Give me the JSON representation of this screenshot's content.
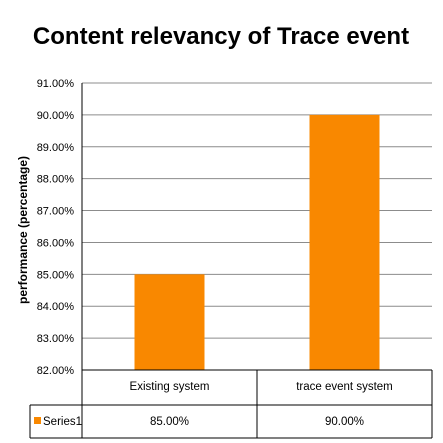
{
  "chart_data": {
    "type": "bar",
    "title": "Content relevancy of Trace event",
    "ylabel": "performance (percentage)",
    "categories": [
      "Existing system",
      "trace event system"
    ],
    "series": [
      {
        "name": "Series1",
        "values": [
          85.0,
          90.0
        ],
        "labels": [
          "85.00%",
          "90.00%"
        ]
      }
    ],
    "ylim": [
      82,
      91
    ],
    "yticks": [
      "82.00%",
      "83.00%",
      "84.00%",
      "85.00%",
      "86.00%",
      "87.00%",
      "88.00%",
      "89.00%",
      "90.00%",
      "91.00%"
    ],
    "grid": true,
    "legend": "data-table",
    "colors": {
      "bar": "#F98800",
      "grid": "#8C8C8C",
      "axis": "#000000"
    }
  }
}
